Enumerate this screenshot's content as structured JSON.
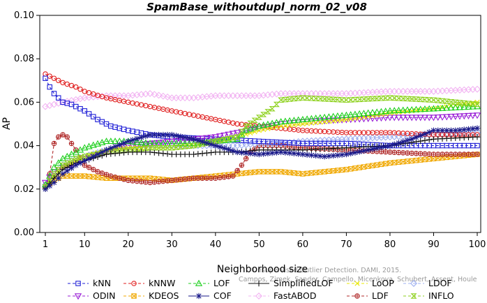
{
  "chart_data": {
    "type": "line",
    "title": "SpamBase_withoutdupl_norm_02_v08",
    "xlabel": "Neighborhood size",
    "ylabel": "AP",
    "xlim": [
      1,
      100
    ],
    "ylim": [
      0.0,
      0.1
    ],
    "xticks": [
      "1",
      "10",
      "20",
      "30",
      "40",
      "50",
      "60",
      "70",
      "80",
      "90",
      "100"
    ],
    "yticks": [
      "0.00",
      "0.02",
      "0.04",
      "0.06",
      "0.08",
      "0.10"
    ],
    "grid": false,
    "legend_position": "bottom",
    "watermark_line1": "Unsupervised Outlier Detection. DAMI, 2015.",
    "watermark_line2": "Campos, Zimek, Sander, Campello, Micenkova, Schubert, Assent, Houle",
    "series": [
      {
        "name": "kNN",
        "color": "#1f1fd6",
        "dash": "4,3",
        "marker": "square",
        "points": [
          [
            1,
            0.071
          ],
          [
            2,
            0.067
          ],
          [
            3,
            0.064
          ],
          [
            4,
            0.062
          ],
          [
            5,
            0.06
          ],
          [
            7,
            0.059
          ],
          [
            10,
            0.056
          ],
          [
            13,
            0.052
          ],
          [
            16,
            0.049
          ],
          [
            20,
            0.047
          ],
          [
            25,
            0.045
          ],
          [
            30,
            0.044
          ],
          [
            40,
            0.043
          ],
          [
            50,
            0.042
          ],
          [
            60,
            0.041
          ],
          [
            70,
            0.041
          ],
          [
            80,
            0.04
          ],
          [
            90,
            0.04
          ],
          [
            100,
            0.04
          ]
        ]
      },
      {
        "name": "kNNW",
        "color": "#e01f1f",
        "dash": "4,3",
        "marker": "circle",
        "points": [
          [
            1,
            0.073
          ],
          [
            3,
            0.071
          ],
          [
            5,
            0.069
          ],
          [
            8,
            0.067
          ],
          [
            10,
            0.065
          ],
          [
            15,
            0.062
          ],
          [
            20,
            0.06
          ],
          [
            25,
            0.058
          ],
          [
            30,
            0.056
          ],
          [
            35,
            0.054
          ],
          [
            40,
            0.052
          ],
          [
            45,
            0.05
          ],
          [
            50,
            0.049
          ],
          [
            55,
            0.048
          ],
          [
            60,
            0.047
          ],
          [
            70,
            0.046
          ],
          [
            80,
            0.046
          ],
          [
            90,
            0.045
          ],
          [
            100,
            0.045
          ]
        ]
      },
      {
        "name": "LOF",
        "color": "#1fcf1f",
        "dash": "4,3",
        "marker": "triangle-up",
        "points": [
          [
            1,
            0.022
          ],
          [
            3,
            0.03
          ],
          [
            5,
            0.034
          ],
          [
            8,
            0.037
          ],
          [
            10,
            0.039
          ],
          [
            15,
            0.042
          ],
          [
            20,
            0.042
          ],
          [
            25,
            0.041
          ],
          [
            30,
            0.041
          ],
          [
            35,
            0.041
          ],
          [
            40,
            0.042
          ],
          [
            45,
            0.043
          ],
          [
            47,
            0.047
          ],
          [
            50,
            0.049
          ],
          [
            55,
            0.051
          ],
          [
            60,
            0.052
          ],
          [
            70,
            0.054
          ],
          [
            80,
            0.056
          ],
          [
            90,
            0.057
          ],
          [
            100,
            0.058
          ]
        ]
      },
      {
        "name": "SimplifiedLOF",
        "color": "#111111",
        "dash": "",
        "marker": "plus",
        "points": [
          [
            1,
            0.02
          ],
          [
            3,
            0.025
          ],
          [
            5,
            0.029
          ],
          [
            8,
            0.032
          ],
          [
            10,
            0.033
          ],
          [
            15,
            0.036
          ],
          [
            20,
            0.037
          ],
          [
            25,
            0.037
          ],
          [
            30,
            0.036
          ],
          [
            35,
            0.036
          ],
          [
            40,
            0.037
          ],
          [
            45,
            0.037
          ],
          [
            50,
            0.038
          ],
          [
            55,
            0.038
          ],
          [
            60,
            0.038
          ],
          [
            70,
            0.039
          ],
          [
            80,
            0.04
          ],
          [
            90,
            0.043
          ],
          [
            100,
            0.044
          ]
        ]
      },
      {
        "name": "LoOP",
        "color": "#e8e800",
        "dash": "4,3",
        "marker": "x",
        "points": [
          [
            1,
            0.021
          ],
          [
            3,
            0.026
          ],
          [
            5,
            0.03
          ],
          [
            8,
            0.033
          ],
          [
            10,
            0.035
          ],
          [
            15,
            0.038
          ],
          [
            20,
            0.039
          ],
          [
            25,
            0.039
          ],
          [
            30,
            0.039
          ],
          [
            35,
            0.04
          ],
          [
            40,
            0.042
          ],
          [
            45,
            0.044
          ],
          [
            50,
            0.047
          ],
          [
            55,
            0.049
          ],
          [
            60,
            0.05
          ],
          [
            70,
            0.052
          ],
          [
            80,
            0.055
          ],
          [
            90,
            0.057
          ],
          [
            100,
            0.06
          ]
        ]
      },
      {
        "name": "LDOF",
        "color": "#9fb0f0",
        "dash": "4,3",
        "marker": "diamond",
        "points": [
          [
            1,
            0.022
          ],
          [
            3,
            0.027
          ],
          [
            5,
            0.031
          ],
          [
            8,
            0.034
          ],
          [
            10,
            0.035
          ],
          [
            15,
            0.038
          ],
          [
            20,
            0.039
          ],
          [
            25,
            0.04
          ],
          [
            30,
            0.04
          ],
          [
            35,
            0.04
          ],
          [
            40,
            0.04
          ],
          [
            45,
            0.04
          ],
          [
            50,
            0.041
          ],
          [
            55,
            0.041
          ],
          [
            60,
            0.042
          ],
          [
            70,
            0.043
          ],
          [
            80,
            0.044
          ],
          [
            90,
            0.045
          ],
          [
            100,
            0.046
          ]
        ]
      },
      {
        "name": "ODIN",
        "color": "#9a1fd6",
        "dash": "4,3",
        "marker": "triangle-down",
        "points": [
          [
            1,
            0.023
          ],
          [
            3,
            0.028
          ],
          [
            5,
            0.03
          ],
          [
            8,
            0.032
          ],
          [
            10,
            0.034
          ],
          [
            15,
            0.037
          ],
          [
            20,
            0.04
          ],
          [
            25,
            0.041
          ],
          [
            30,
            0.042
          ],
          [
            35,
            0.043
          ],
          [
            40,
            0.044
          ],
          [
            45,
            0.046
          ],
          [
            50,
            0.048
          ],
          [
            55,
            0.05
          ],
          [
            60,
            0.051
          ],
          [
            70,
            0.052
          ],
          [
            80,
            0.053
          ],
          [
            90,
            0.053
          ],
          [
            100,
            0.054
          ]
        ]
      },
      {
        "name": "KDEOS",
        "color": "#f0a800",
        "dash": "4,3",
        "marker": "square-x",
        "points": [
          [
            1,
            0.021
          ],
          [
            3,
            0.024
          ],
          [
            5,
            0.026
          ],
          [
            8,
            0.026
          ],
          [
            10,
            0.026
          ],
          [
            15,
            0.025
          ],
          [
            20,
            0.025
          ],
          [
            25,
            0.025
          ],
          [
            30,
            0.024
          ],
          [
            35,
            0.025
          ],
          [
            40,
            0.026
          ],
          [
            45,
            0.027
          ],
          [
            50,
            0.028
          ],
          [
            55,
            0.028
          ],
          [
            60,
            0.027
          ],
          [
            70,
            0.029
          ],
          [
            80,
            0.032
          ],
          [
            90,
            0.034
          ],
          [
            100,
            0.036
          ]
        ]
      },
      {
        "name": "COF",
        "color": "#1a1a8a",
        "dash": "",
        "marker": "asterisk",
        "points": [
          [
            1,
            0.02
          ],
          [
            3,
            0.023
          ],
          [
            5,
            0.027
          ],
          [
            8,
            0.031
          ],
          [
            10,
            0.033
          ],
          [
            15,
            0.038
          ],
          [
            20,
            0.042
          ],
          [
            25,
            0.045
          ],
          [
            30,
            0.045
          ],
          [
            35,
            0.043
          ],
          [
            40,
            0.04
          ],
          [
            45,
            0.037
          ],
          [
            50,
            0.036
          ],
          [
            55,
            0.037
          ],
          [
            60,
            0.036
          ],
          [
            65,
            0.035
          ],
          [
            70,
            0.036
          ],
          [
            75,
            0.038
          ],
          [
            80,
            0.04
          ],
          [
            85,
            0.043
          ],
          [
            90,
            0.047
          ],
          [
            95,
            0.047
          ],
          [
            100,
            0.048
          ]
        ]
      },
      {
        "name": "FastABOD",
        "color": "#f2b4f2",
        "dash": "4,3",
        "marker": "diamond-open",
        "points": [
          [
            1,
            0.058
          ],
          [
            5,
            0.06
          ],
          [
            10,
            0.062
          ],
          [
            15,
            0.063
          ],
          [
            20,
            0.063
          ],
          [
            25,
            0.064
          ],
          [
            30,
            0.062
          ],
          [
            35,
            0.062
          ],
          [
            40,
            0.063
          ],
          [
            45,
            0.063
          ],
          [
            50,
            0.063
          ],
          [
            55,
            0.064
          ],
          [
            60,
            0.064
          ],
          [
            70,
            0.064
          ],
          [
            80,
            0.065
          ],
          [
            90,
            0.065
          ],
          [
            100,
            0.066
          ]
        ]
      },
      {
        "name": "LDF",
        "color": "#b02a2a",
        "dash": "4,3",
        "marker": "circle-plus",
        "points": [
          [
            1,
            0.021
          ],
          [
            2,
            0.027
          ],
          [
            3,
            0.041
          ],
          [
            4,
            0.044
          ],
          [
            5,
            0.045
          ],
          [
            6,
            0.044
          ],
          [
            7,
            0.041
          ],
          [
            8,
            0.038
          ],
          [
            10,
            0.031
          ],
          [
            13,
            0.028
          ],
          [
            16,
            0.026
          ],
          [
            20,
            0.024
          ],
          [
            25,
            0.023
          ],
          [
            30,
            0.024
          ],
          [
            35,
            0.025
          ],
          [
            40,
            0.025
          ],
          [
            44,
            0.026
          ],
          [
            46,
            0.031
          ],
          [
            48,
            0.037
          ],
          [
            50,
            0.04
          ],
          [
            55,
            0.04
          ],
          [
            60,
            0.039
          ],
          [
            70,
            0.038
          ],
          [
            80,
            0.037
          ],
          [
            90,
            0.036
          ],
          [
            100,
            0.036
          ]
        ]
      },
      {
        "name": "INFLO",
        "color": "#8ed11e",
        "dash": "4,3",
        "marker": "hourglass",
        "points": [
          [
            1,
            0.021
          ],
          [
            3,
            0.027
          ],
          [
            5,
            0.031
          ],
          [
            8,
            0.034
          ],
          [
            10,
            0.035
          ],
          [
            15,
            0.037
          ],
          [
            20,
            0.038
          ],
          [
            25,
            0.039
          ],
          [
            30,
            0.039
          ],
          [
            35,
            0.04
          ],
          [
            40,
            0.042
          ],
          [
            45,
            0.044
          ],
          [
            47,
            0.049
          ],
          [
            50,
            0.053
          ],
          [
            53,
            0.057
          ],
          [
            55,
            0.061
          ],
          [
            60,
            0.062
          ],
          [
            70,
            0.061
          ],
          [
            80,
            0.062
          ],
          [
            90,
            0.061
          ],
          [
            100,
            0.059
          ]
        ]
      }
    ]
  }
}
